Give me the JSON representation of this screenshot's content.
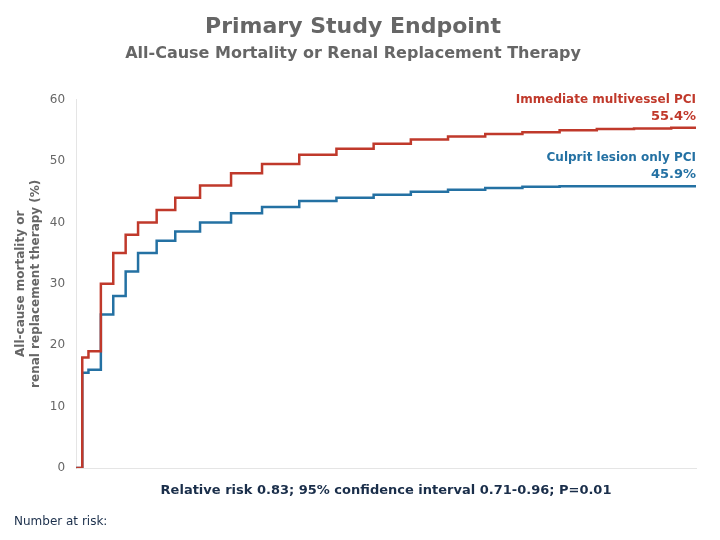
{
  "chart_data": {
    "type": "line",
    "title": "Primary Study Endpoint",
    "subtitle": "All-Cause Mortality or Renal Replacement Therapy",
    "ylabel": "All-cause mortality or\nrenal replacement therapy (%)",
    "annotations": [
      "Relative risk 0.83; 95% confidence interval 0.71-0.96; P=0.01",
      "Number at risk:"
    ],
    "x": [
      0,
      0.01,
      0.02,
      0.04,
      0.06,
      0.08,
      0.1,
      0.13,
      0.16,
      0.2,
      0.25,
      0.3,
      0.36,
      0.42,
      0.48,
      0.54,
      0.6,
      0.66,
      0.72,
      0.78,
      0.84,
      0.9,
      0.96,
      1.0
    ],
    "series": [
      {
        "name": "Immediate multivessel PCI",
        "color": "#c0392b",
        "end_label": "55.4%",
        "values": [
          0,
          18,
          19,
          30,
          35,
          38,
          40,
          42,
          44,
          46,
          48,
          49.5,
          51,
          52,
          52.8,
          53.5,
          54,
          54.4,
          54.7,
          55.0,
          55.2,
          55.3,
          55.4,
          55.4
        ]
      },
      {
        "name": "Culprit lesion only PCI",
        "color": "#2471a3",
        "end_label": "45.9%",
        "values": [
          0,
          15.5,
          16,
          25,
          28,
          32,
          35,
          37,
          38.5,
          40,
          41.5,
          42.5,
          43.5,
          44,
          44.5,
          45,
          45.3,
          45.6,
          45.8,
          45.9,
          45.9,
          45.9,
          45.9,
          45.9
        ]
      }
    ],
    "xlim": [
      0,
      1
    ],
    "ylim": [
      0,
      60
    ],
    "yticks": [
      0,
      10,
      20,
      30,
      40,
      50,
      60
    ],
    "grid": false,
    "tick_labels": "y",
    "line_style": "step"
  }
}
